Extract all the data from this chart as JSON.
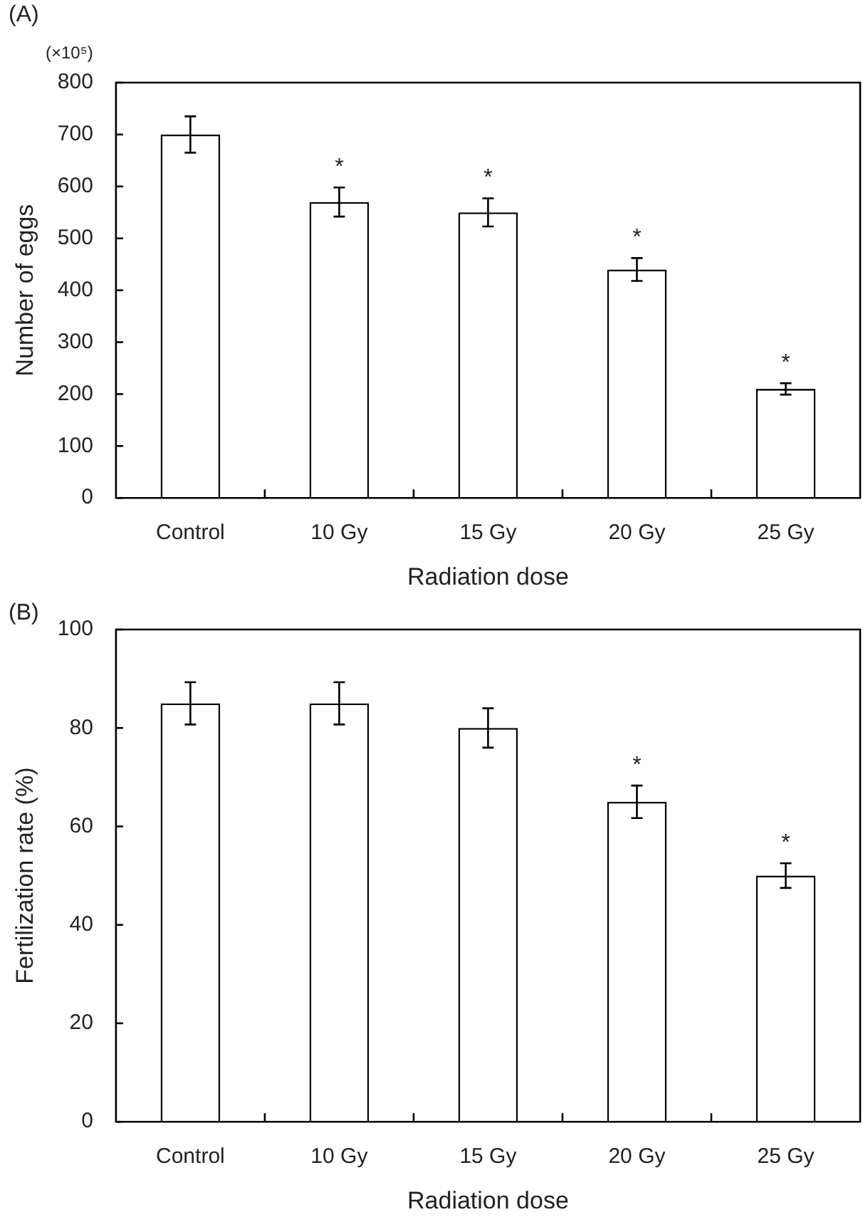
{
  "chart_data": [
    {
      "type": "bar",
      "title": "(A)",
      "xlabel": "Radiation dose",
      "ylabel": "Number of eggs",
      "categories": [
        "Control",
        "10 Gy",
        "15 Gy",
        "20 Gy",
        "25 Gy"
      ],
      "values": [
        700,
        570,
        550,
        440,
        210
      ],
      "color": "#ffffff",
      "errors": [
        35,
        28,
        27,
        22,
        11
      ],
      "ylim": [
        0,
        800
      ],
      "yticks": [
        0,
        100,
        200,
        300,
        400,
        500,
        600,
        700,
        800
      ],
      "annotations": [
        "(×10⁵)",
        {
          "text": "*",
          "x": "10 Gy",
          "y": 570
        },
        {
          "text": "*",
          "x": "15 Gy",
          "y": 550
        },
        {
          "text": "*",
          "x": "20 Gy",
          "y": 440
        },
        {
          "text": "*",
          "x": "25 Gy",
          "y": 210
        }
      ]
    },
    {
      "type": "bar",
      "title": "(B)",
      "xlabel": "Radiation dose",
      "ylabel": "Fertilization rate (%)",
      "categories": [
        "Control",
        "10 Gy",
        "15 Gy",
        "20 Gy",
        "25 Gy"
      ],
      "values": [
        85,
        85,
        80,
        65,
        50
      ],
      "color": "#ffffff",
      "errors": [
        4.3,
        4.3,
        4,
        3.3,
        2.5
      ],
      "ylim": [
        0,
        100
      ],
      "yticks": [
        0,
        20,
        40,
        60,
        80,
        100
      ],
      "annotations": [
        {
          "text": "*",
          "x": "20 Gy",
          "y": 65
        },
        {
          "text": "*",
          "x": "25 Gy",
          "y": 50
        }
      ]
    }
  ]
}
